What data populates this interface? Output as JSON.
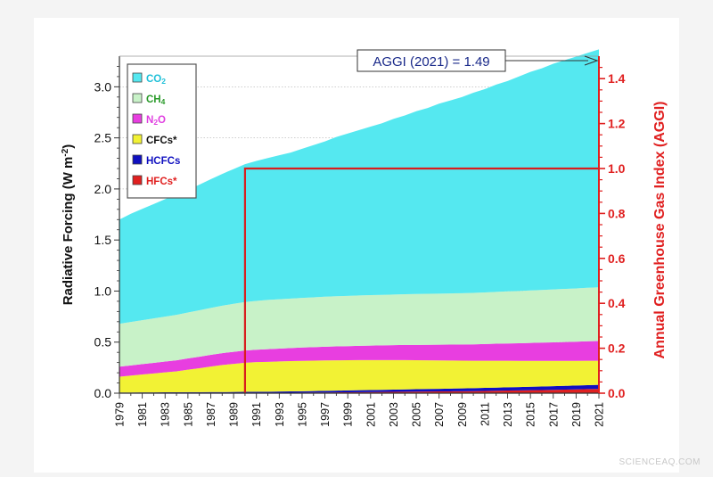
{
  "watermark": "SCIENCEAQ.COM",
  "chart_data": {
    "type": "area",
    "stacked": true,
    "title": "",
    "xlabel": "",
    "ylabel": "Radiative Forcing (W m",
    "ylabel_superscript": "-2",
    "ylabel_right": "Annual Greenhouse Gas Index (AGGI)",
    "ylim": [
      0,
      3.3
    ],
    "ylim_right": [
      0,
      1.5
    ],
    "yticks": [
      0.0,
      0.5,
      1.0,
      1.5,
      2.0,
      2.5,
      3.0
    ],
    "yticks_right": [
      0.0,
      0.2,
      0.4,
      0.6,
      0.8,
      1.0,
      1.2,
      1.4
    ],
    "grid": true,
    "legend_position": "top-left",
    "x": [
      1979,
      1980,
      1981,
      1982,
      1983,
      1984,
      1985,
      1986,
      1987,
      1988,
      1989,
      1990,
      1991,
      1992,
      1993,
      1994,
      1995,
      1996,
      1997,
      1998,
      1999,
      2000,
      2001,
      2002,
      2003,
      2004,
      2005,
      2006,
      2007,
      2008,
      2009,
      2010,
      2011,
      2012,
      2013,
      2014,
      2015,
      2016,
      2017,
      2018,
      2019,
      2020,
      2021
    ],
    "xtick_labels": [
      "1979",
      "1981",
      "1983",
      "1985",
      "1987",
      "1989",
      "1991",
      "1993",
      "1995",
      "1997",
      "1999",
      "2001",
      "2003",
      "2005",
      "2007",
      "2009",
      "2011",
      "2013",
      "2015",
      "2017",
      "2019",
      "2021"
    ],
    "series": [
      {
        "name": "HFCs*",
        "sub": "",
        "color": "#e02020",
        "label_color": "#e02020",
        "values": [
          0.002,
          0.002,
          0.002,
          0.002,
          0.002,
          0.002,
          0.002,
          0.002,
          0.002,
          0.002,
          0.002,
          0.003,
          0.003,
          0.003,
          0.004,
          0.004,
          0.005,
          0.006,
          0.007,
          0.008,
          0.009,
          0.01,
          0.011,
          0.012,
          0.013,
          0.014,
          0.015,
          0.016,
          0.017,
          0.018,
          0.019,
          0.02,
          0.022,
          0.024,
          0.026,
          0.027,
          0.029,
          0.031,
          0.033,
          0.035,
          0.037,
          0.04,
          0.042
        ]
      },
      {
        "name": "HCFCs",
        "sub": "",
        "color": "#1010c0",
        "label_color": "#1010c0",
        "values": [
          0.005,
          0.005,
          0.006,
          0.006,
          0.007,
          0.007,
          0.008,
          0.008,
          0.009,
          0.009,
          0.01,
          0.01,
          0.011,
          0.011,
          0.012,
          0.013,
          0.014,
          0.015,
          0.016,
          0.017,
          0.018,
          0.019,
          0.02,
          0.021,
          0.022,
          0.023,
          0.024,
          0.025,
          0.026,
          0.027,
          0.028,
          0.029,
          0.03,
          0.031,
          0.032,
          0.033,
          0.034,
          0.035,
          0.036,
          0.037,
          0.038,
          0.039,
          0.04
        ]
      },
      {
        "name": "CFCs*",
        "sub": "",
        "color": "#f2f234",
        "label_color": "#111111",
        "values": [
          0.155,
          0.165,
          0.175,
          0.185,
          0.195,
          0.205,
          0.22,
          0.235,
          0.25,
          0.265,
          0.275,
          0.285,
          0.29,
          0.293,
          0.295,
          0.297,
          0.298,
          0.298,
          0.298,
          0.297,
          0.296,
          0.295,
          0.293,
          0.291,
          0.289,
          0.287,
          0.284,
          0.281,
          0.278,
          0.275,
          0.272,
          0.269,
          0.266,
          0.263,
          0.26,
          0.257,
          0.254,
          0.251,
          0.248,
          0.245,
          0.242,
          0.239,
          0.236
        ]
      },
      {
        "name": "N",
        "sub": "2",
        "name_tail": "O",
        "color": "#e83ee0",
        "label_color": "#e040e0",
        "values": [
          0.098,
          0.1,
          0.102,
          0.104,
          0.106,
          0.108,
          0.11,
          0.112,
          0.114,
          0.116,
          0.118,
          0.12,
          0.122,
          0.124,
          0.126,
          0.128,
          0.13,
          0.132,
          0.134,
          0.136,
          0.138,
          0.14,
          0.142,
          0.144,
          0.146,
          0.148,
          0.15,
          0.152,
          0.154,
          0.156,
          0.158,
          0.16,
          0.163,
          0.166,
          0.169,
          0.172,
          0.175,
          0.178,
          0.181,
          0.184,
          0.187,
          0.19,
          0.193
        ]
      },
      {
        "name": "CH",
        "sub": "4",
        "color": "#c8f2c8",
        "label_color": "#2a9a2a",
        "values": [
          0.42,
          0.425,
          0.43,
          0.435,
          0.44,
          0.445,
          0.45,
          0.455,
          0.46,
          0.465,
          0.47,
          0.475,
          0.478,
          0.482,
          0.483,
          0.484,
          0.486,
          0.488,
          0.49,
          0.491,
          0.492,
          0.493,
          0.494,
          0.495,
          0.496,
          0.497,
          0.498,
          0.499,
          0.5,
          0.501,
          0.502,
          0.504,
          0.506,
          0.508,
          0.51,
          0.512,
          0.514,
          0.516,
          0.518,
          0.52,
          0.522,
          0.524,
          0.526
        ]
      },
      {
        "name": "CO",
        "sub": "2",
        "color": "#55e8f0",
        "label_color": "#20c0d8",
        "values": [
          1.02,
          1.06,
          1.09,
          1.12,
          1.15,
          1.18,
          1.2,
          1.23,
          1.26,
          1.29,
          1.32,
          1.35,
          1.37,
          1.39,
          1.41,
          1.43,
          1.46,
          1.49,
          1.52,
          1.56,
          1.59,
          1.62,
          1.65,
          1.68,
          1.72,
          1.75,
          1.79,
          1.82,
          1.86,
          1.89,
          1.92,
          1.96,
          1.99,
          2.03,
          2.06,
          2.1,
          2.14,
          2.17,
          2.21,
          2.24,
          2.27,
          2.3,
          2.33
        ]
      }
    ],
    "legend_order": [
      5,
      4,
      3,
      2,
      1,
      0
    ],
    "reference_box": {
      "x_start": 1990,
      "x_end": 2021,
      "aggi_level": 1.0,
      "color": "#d81e1e"
    },
    "annotation": {
      "text": "AGGI (2021) = 1.49",
      "points_to_year": 2021
    }
  }
}
